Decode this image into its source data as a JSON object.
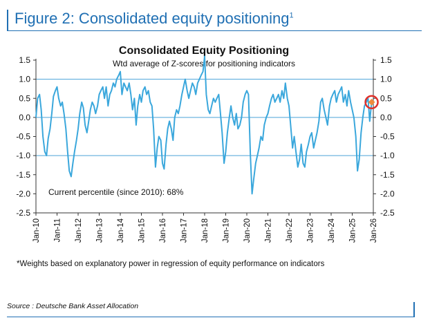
{
  "figure": {
    "title": "Figure 2: Consolidated equity positioning",
    "title_sup": "1",
    "footnote": "*Weights based on explanatory power in regression of equity performance on indicators",
    "source": "Source : Deutsche Bank Asset Allocation"
  },
  "chart_data": {
    "type": "line",
    "title": "Consolidated Equity Positioning",
    "subtitle": "Wtd average of Z-scores for positioning indicators",
    "annotation": "Current percentile (since 2010): 68%",
    "xlabel": "",
    "ylabel": "",
    "ylim": [
      -2.5,
      1.5
    ],
    "y_ticks": [
      1.5,
      1.0,
      0.5,
      0.0,
      -0.5,
      -1.0,
      -1.5,
      -2.0,
      -2.5
    ],
    "y_tick_labels": [
      "1.5",
      "1.0",
      "0.5",
      "0.0",
      "-0.5",
      "-1.0",
      "-1.5",
      "-2.0",
      "-2.5"
    ],
    "x_ticks": [
      "Jan-10",
      "Jan-11",
      "Jan-12",
      "Jan-13",
      "Jan-14",
      "Jan-15",
      "Jan-16",
      "Jan-17",
      "Jan-18",
      "Jan-19",
      "Jan-20",
      "Jan-21",
      "Jan-22",
      "Jan-23",
      "Jan-24",
      "Jan-25",
      "Jan-26"
    ],
    "xlim": [
      2010.0,
      2026.0
    ],
    "reference_lines": [
      1.0,
      0.0,
      -1.0
    ],
    "line_color": "#3aa7dc",
    "highlight_color": "#e0302a",
    "marker_color": "#f08a3c",
    "series": [
      {
        "points": [
          [
            2010.0,
            0.0
          ],
          [
            2010.08,
            0.5
          ],
          [
            2010.17,
            0.6
          ],
          [
            2010.25,
            0.2
          ],
          [
            2010.33,
            -0.5
          ],
          [
            2010.42,
            -0.9
          ],
          [
            2010.5,
            -1.0
          ],
          [
            2010.58,
            -0.55
          ],
          [
            2010.67,
            -0.3
          ],
          [
            2010.75,
            0.1
          ],
          [
            2010.83,
            0.55
          ],
          [
            2010.92,
            0.7
          ],
          [
            2011.0,
            0.8
          ],
          [
            2011.08,
            0.5
          ],
          [
            2011.17,
            0.3
          ],
          [
            2011.25,
            0.4
          ],
          [
            2011.33,
            0.1
          ],
          [
            2011.42,
            -0.3
          ],
          [
            2011.5,
            -0.9
          ],
          [
            2011.58,
            -1.4
          ],
          [
            2011.67,
            -1.55
          ],
          [
            2011.75,
            -1.2
          ],
          [
            2011.83,
            -0.9
          ],
          [
            2011.92,
            -0.6
          ],
          [
            2012.0,
            -0.3
          ],
          [
            2012.08,
            0.1
          ],
          [
            2012.17,
            0.4
          ],
          [
            2012.25,
            0.25
          ],
          [
            2012.33,
            -0.2
          ],
          [
            2012.42,
            -0.4
          ],
          [
            2012.5,
            -0.1
          ],
          [
            2012.58,
            0.2
          ],
          [
            2012.67,
            0.4
          ],
          [
            2012.75,
            0.3
          ],
          [
            2012.83,
            0.1
          ],
          [
            2012.92,
            0.3
          ],
          [
            2013.0,
            0.6
          ],
          [
            2013.08,
            0.7
          ],
          [
            2013.17,
            0.8
          ],
          [
            2013.25,
            0.5
          ],
          [
            2013.33,
            0.8
          ],
          [
            2013.42,
            0.3
          ],
          [
            2013.5,
            0.6
          ],
          [
            2013.58,
            0.7
          ],
          [
            2013.67,
            0.9
          ],
          [
            2013.75,
            0.8
          ],
          [
            2013.83,
            1.0
          ],
          [
            2013.92,
            1.1
          ],
          [
            2014.0,
            1.2
          ],
          [
            2014.08,
            0.6
          ],
          [
            2014.17,
            0.9
          ],
          [
            2014.25,
            0.8
          ],
          [
            2014.33,
            0.7
          ],
          [
            2014.42,
            0.9
          ],
          [
            2014.5,
            0.6
          ],
          [
            2014.58,
            0.2
          ],
          [
            2014.67,
            0.5
          ],
          [
            2014.75,
            -0.2
          ],
          [
            2014.83,
            0.3
          ],
          [
            2014.92,
            0.6
          ],
          [
            2015.0,
            0.4
          ],
          [
            2015.08,
            0.7
          ],
          [
            2015.17,
            0.8
          ],
          [
            2015.25,
            0.6
          ],
          [
            2015.33,
            0.7
          ],
          [
            2015.42,
            0.4
          ],
          [
            2015.5,
            0.3
          ],
          [
            2015.58,
            -0.3
          ],
          [
            2015.67,
            -1.3
          ],
          [
            2015.75,
            -0.8
          ],
          [
            2015.83,
            -0.5
          ],
          [
            2015.92,
            -0.6
          ],
          [
            2016.0,
            -1.2
          ],
          [
            2016.08,
            -1.35
          ],
          [
            2016.17,
            -0.7
          ],
          [
            2016.25,
            -0.3
          ],
          [
            2016.33,
            -0.1
          ],
          [
            2016.42,
            -0.3
          ],
          [
            2016.5,
            -0.6
          ],
          [
            2016.58,
            0.0
          ],
          [
            2016.67,
            0.2
          ],
          [
            2016.75,
            0.1
          ],
          [
            2016.83,
            0.3
          ],
          [
            2016.92,
            0.6
          ],
          [
            2017.0,
            0.8
          ],
          [
            2017.08,
            1.0
          ],
          [
            2017.17,
            0.7
          ],
          [
            2017.25,
            0.5
          ],
          [
            2017.33,
            0.7
          ],
          [
            2017.42,
            0.9
          ],
          [
            2017.5,
            0.8
          ],
          [
            2017.58,
            0.6
          ],
          [
            2017.67,
            0.9
          ],
          [
            2017.75,
            1.0
          ],
          [
            2017.83,
            1.1
          ],
          [
            2017.92,
            1.2
          ],
          [
            2018.0,
            1.6
          ],
          [
            2018.08,
            0.6
          ],
          [
            2018.17,
            0.2
          ],
          [
            2018.25,
            0.1
          ],
          [
            2018.33,
            0.3
          ],
          [
            2018.42,
            0.5
          ],
          [
            2018.5,
            0.4
          ],
          [
            2018.58,
            0.5
          ],
          [
            2018.67,
            0.6
          ],
          [
            2018.75,
            0.1
          ],
          [
            2018.83,
            -0.4
          ],
          [
            2018.92,
            -1.2
          ],
          [
            2019.0,
            -0.9
          ],
          [
            2019.08,
            -0.4
          ],
          [
            2019.17,
            0.0
          ],
          [
            2019.25,
            0.3
          ],
          [
            2019.33,
            0.0
          ],
          [
            2019.42,
            -0.2
          ],
          [
            2019.5,
            0.1
          ],
          [
            2019.58,
            -0.3
          ],
          [
            2019.67,
            -0.2
          ],
          [
            2019.75,
            0.0
          ],
          [
            2019.83,
            0.4
          ],
          [
            2019.92,
            0.6
          ],
          [
            2020.0,
            0.7
          ],
          [
            2020.08,
            0.6
          ],
          [
            2020.17,
            -1.0
          ],
          [
            2020.25,
            -2.0
          ],
          [
            2020.33,
            -1.6
          ],
          [
            2020.42,
            -1.2
          ],
          [
            2020.5,
            -1.0
          ],
          [
            2020.58,
            -0.8
          ],
          [
            2020.67,
            -0.5
          ],
          [
            2020.75,
            -0.6
          ],
          [
            2020.83,
            -0.2
          ],
          [
            2020.92,
            0.0
          ],
          [
            2021.0,
            0.1
          ],
          [
            2021.08,
            0.3
          ],
          [
            2021.17,
            0.5
          ],
          [
            2021.25,
            0.6
          ],
          [
            2021.33,
            0.4
          ],
          [
            2021.42,
            0.5
          ],
          [
            2021.5,
            0.6
          ],
          [
            2021.58,
            0.4
          ],
          [
            2021.67,
            0.7
          ],
          [
            2021.75,
            0.5
          ],
          [
            2021.83,
            0.9
          ],
          [
            2021.92,
            0.5
          ],
          [
            2022.0,
            0.3
          ],
          [
            2022.08,
            -0.2
          ],
          [
            2022.17,
            -0.8
          ],
          [
            2022.25,
            -0.5
          ],
          [
            2022.33,
            -0.9
          ],
          [
            2022.42,
            -1.3
          ],
          [
            2022.5,
            -1.1
          ],
          [
            2022.58,
            -0.7
          ],
          [
            2022.67,
            -1.2
          ],
          [
            2022.75,
            -1.3
          ],
          [
            2022.83,
            -0.9
          ],
          [
            2022.92,
            -0.7
          ],
          [
            2023.0,
            -0.5
          ],
          [
            2023.08,
            -0.4
          ],
          [
            2023.17,
            -0.8
          ],
          [
            2023.25,
            -0.6
          ],
          [
            2023.33,
            -0.4
          ],
          [
            2023.42,
            -0.1
          ],
          [
            2023.5,
            0.4
          ],
          [
            2023.58,
            0.5
          ],
          [
            2023.67,
            0.2
          ],
          [
            2023.75,
            0.0
          ],
          [
            2023.83,
            -0.2
          ],
          [
            2023.92,
            0.3
          ],
          [
            2024.0,
            0.5
          ],
          [
            2024.08,
            0.6
          ],
          [
            2024.17,
            0.7
          ],
          [
            2024.25,
            0.4
          ],
          [
            2024.33,
            0.6
          ],
          [
            2024.42,
            0.7
          ],
          [
            2024.5,
            0.8
          ],
          [
            2024.58,
            0.4
          ],
          [
            2024.67,
            0.6
          ],
          [
            2024.75,
            0.3
          ],
          [
            2024.83,
            0.7
          ],
          [
            2024.92,
            0.4
          ],
          [
            2025.0,
            0.2
          ],
          [
            2025.08,
            0.0
          ],
          [
            2025.17,
            -0.5
          ],
          [
            2025.25,
            -1.4
          ],
          [
            2025.33,
            -1.1
          ],
          [
            2025.42,
            -0.4
          ],
          [
            2025.5,
            0.0
          ],
          [
            2025.58,
            0.3
          ],
          [
            2025.67,
            0.4
          ],
          [
            2025.75,
            0.5
          ],
          [
            2025.83,
            -0.1
          ],
          [
            2025.92,
            0.4
          ]
        ]
      }
    ],
    "current_point": [
      2025.92,
      0.4
    ]
  }
}
